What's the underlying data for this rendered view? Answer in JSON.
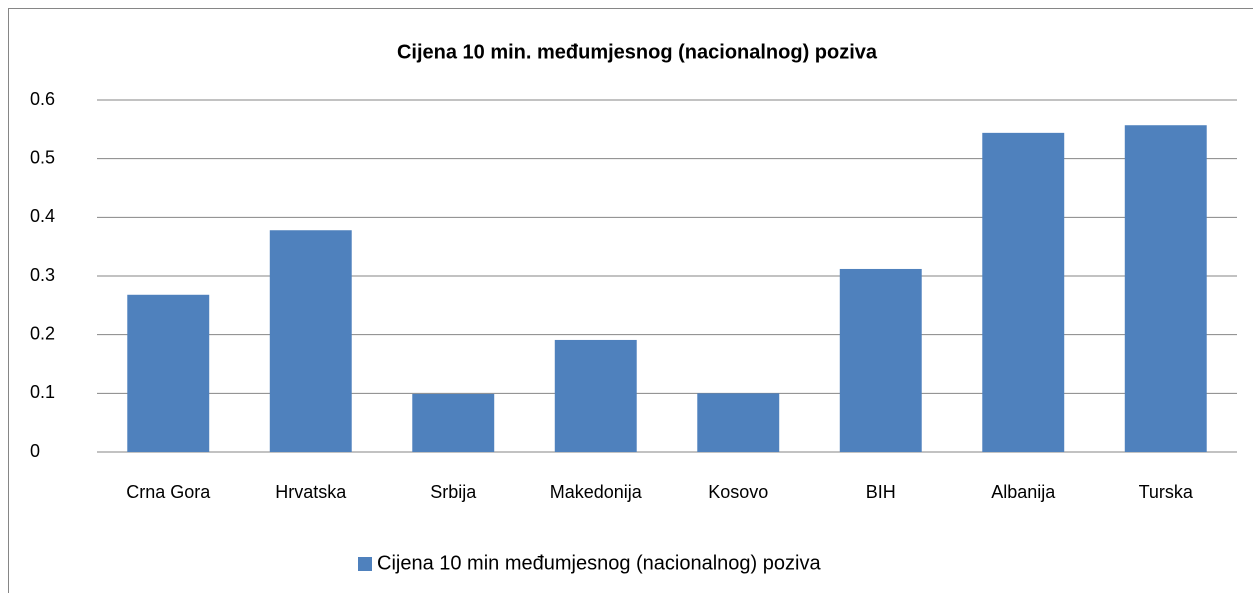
{
  "chart_data": {
    "type": "bar",
    "title": "Cijena 10 min. međumjesnog (nacionalnog) poziva",
    "categories": [
      "Crna Gora",
      "Hrvatska",
      "Srbija",
      "Makedonija",
      "Kosovo",
      "BIH",
      "Albanija",
      "Turska"
    ],
    "series": [
      {
        "name": "Cijena 10 min međumjesnog (nacionalnog) poziva",
        "color": "#4f81bd",
        "values": [
          0.268,
          0.378,
          0.099,
          0.191,
          0.1,
          0.312,
          0.544,
          0.557
        ]
      }
    ],
    "ylim": [
      0,
      0.6
    ],
    "yticks": [
      0,
      0.1,
      0.2,
      0.3,
      0.4,
      0.5,
      0.6
    ],
    "grid": true,
    "legend": "bottom"
  }
}
